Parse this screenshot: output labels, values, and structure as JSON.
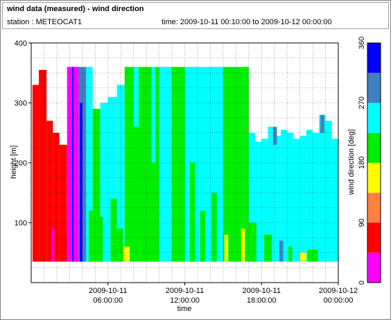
{
  "header": {
    "title": "wind data (measured) - wind direction",
    "station": "station : METEOCAT1",
    "time_range": "time: 2009-10-11 00:10:00 to 2009-10-12 00:00:00"
  },
  "chart_data": {
    "type": "heatmap",
    "title": "wind data (measured) - wind direction",
    "xlabel": "time",
    "ylabel": "height [m]",
    "zlabel": "wind direction [deg]",
    "x_unit": "hours since 2009-10-11 00:00",
    "xlim": [
      0,
      24
    ],
    "ylim": [
      0,
      400
    ],
    "y_ticks": [
      100,
      200,
      300,
      400
    ],
    "x_ticks": [
      {
        "value": 6,
        "line1": "2009-10-11",
        "line2": "06:00:00"
      },
      {
        "value": 12,
        "line1": "2009-10-11",
        "line2": "12:00:00"
      },
      {
        "value": 18,
        "line1": "2009-10-11",
        "line2": "18:00:00"
      },
      {
        "value": 24,
        "line1": "2009-10-12",
        "line2": "00:00:00"
      }
    ],
    "colorbar": {
      "ticks": [
        0,
        90,
        180,
        270,
        360
      ],
      "bins": [
        {
          "from": 0,
          "to": 45,
          "color": "#ff00ff"
        },
        {
          "from": 45,
          "to": 90,
          "color": "#ff0000"
        },
        {
          "from": 90,
          "to": 135,
          "color": "#ff8040"
        },
        {
          "from": 135,
          "to": 180,
          "color": "#ffff00"
        },
        {
          "from": 180,
          "to": 225,
          "color": "#00ee00"
        },
        {
          "from": 225,
          "to": 270,
          "color": "#00ffff"
        },
        {
          "from": 270,
          "to": 315,
          "color": "#4080c0"
        },
        {
          "from": 315,
          "to": 360,
          "color": "#0000ff"
        }
      ]
    },
    "grid": true,
    "data_bottom_height": 35,
    "columns": [
      {
        "t0": 0.1,
        "t1": 0.6,
        "top": 330,
        "dir": 67
      },
      {
        "t0": 0.6,
        "t1": 1.2,
        "top": 355,
        "dir": 67
      },
      {
        "t0": 1.2,
        "t1": 1.7,
        "top": 270,
        "dir": 67
      },
      {
        "t0": 1.7,
        "t1": 2.2,
        "top": 250,
        "dir": 67
      },
      {
        "t0": 2.2,
        "t1": 2.8,
        "top": 230,
        "dir": 67
      },
      {
        "t0": 2.8,
        "t1": 3.2,
        "top": 360,
        "dir": 22
      },
      {
        "t0": 3.2,
        "t1": 3.7,
        "top": 360,
        "dir": 337
      },
      {
        "t0": 3.7,
        "t1": 4.3,
        "top": 360,
        "dir": 292
      },
      {
        "t0": 4.3,
        "t1": 4.8,
        "top": 360,
        "dir": 247
      },
      {
        "t0": 4.8,
        "t1": 5.4,
        "top": 290,
        "dir": 202
      },
      {
        "t0": 5.4,
        "t1": 6.0,
        "top": 300,
        "dir": 247
      },
      {
        "t0": 6.0,
        "t1": 6.7,
        "top": 310,
        "dir": 247
      },
      {
        "t0": 6.7,
        "t1": 7.3,
        "top": 330,
        "dir": 247
      },
      {
        "t0": 7.3,
        "t1": 8.0,
        "top": 360,
        "dir": 202
      },
      {
        "t0": 8.0,
        "t1": 9.0,
        "top": 360,
        "dir": 202
      },
      {
        "t0": 9.0,
        "t1": 10.0,
        "top": 360,
        "dir": 202
      },
      {
        "t0": 10.0,
        "t1": 11.0,
        "top": 360,
        "dir": 247
      },
      {
        "t0": 11.0,
        "t1": 12.0,
        "top": 360,
        "dir": 202
      },
      {
        "t0": 12.0,
        "t1": 13.0,
        "top": 360,
        "dir": 247
      },
      {
        "t0": 13.0,
        "t1": 14.0,
        "top": 360,
        "dir": 247
      },
      {
        "t0": 14.0,
        "t1": 15.0,
        "top": 360,
        "dir": 247
      },
      {
        "t0": 15.0,
        "t1": 16.0,
        "top": 360,
        "dir": 202
      },
      {
        "t0": 16.0,
        "t1": 17.0,
        "top": 360,
        "dir": 202
      },
      {
        "t0": 17.0,
        "t1": 17.5,
        "top": 250,
        "dir": 247
      },
      {
        "t0": 17.5,
        "t1": 18.0,
        "top": 235,
        "dir": 247
      },
      {
        "t0": 18.0,
        "t1": 18.5,
        "top": 240,
        "dir": 247
      },
      {
        "t0": 18.5,
        "t1": 19.0,
        "top": 260,
        "dir": 247
      },
      {
        "t0": 19.0,
        "t1": 19.5,
        "top": 245,
        "dir": 247
      },
      {
        "t0": 19.5,
        "t1": 20.0,
        "top": 255,
        "dir": 247
      },
      {
        "t0": 20.0,
        "t1": 20.5,
        "top": 250,
        "dir": 247
      },
      {
        "t0": 20.5,
        "t1": 21.0,
        "top": 240,
        "dir": 247
      },
      {
        "t0": 21.0,
        "t1": 21.5,
        "top": 245,
        "dir": 247
      },
      {
        "t0": 21.5,
        "t1": 22.0,
        "top": 255,
        "dir": 247
      },
      {
        "t0": 22.0,
        "t1": 22.5,
        "top": 250,
        "dir": 247
      },
      {
        "t0": 22.5,
        "t1": 23.0,
        "top": 280,
        "dir": 247
      },
      {
        "t0": 23.0,
        "t1": 23.5,
        "top": 270,
        "dir": 247
      },
      {
        "t0": 23.5,
        "t1": 24.0,
        "top": 240,
        "dir": 247
      }
    ],
    "patches": [
      {
        "t0": 3.3,
        "t1": 3.7,
        "h0": 35,
        "h1": 360,
        "dir": 22
      },
      {
        "t0": 3.8,
        "t1": 4.0,
        "h0": 35,
        "h1": 300,
        "dir": 337
      },
      {
        "t0": 2.8,
        "t1": 3.0,
        "h0": 35,
        "h1": 80,
        "dir": 22
      },
      {
        "t0": 1.6,
        "t1": 1.8,
        "h0": 35,
        "h1": 90,
        "dir": 22
      },
      {
        "t0": 4.5,
        "t1": 4.8,
        "h0": 35,
        "h1": 120,
        "dir": 202
      },
      {
        "t0": 5.2,
        "t1": 5.6,
        "h0": 35,
        "h1": 110,
        "dir": 202
      },
      {
        "t0": 6.2,
        "t1": 6.7,
        "h0": 35,
        "h1": 140,
        "dir": 202
      },
      {
        "t0": 6.7,
        "t1": 7.2,
        "h0": 35,
        "h1": 90,
        "dir": 202
      },
      {
        "t0": 7.2,
        "t1": 7.7,
        "h0": 35,
        "h1": 60,
        "dir": 157
      },
      {
        "t0": 8.0,
        "t1": 8.4,
        "h0": 260,
        "h1": 360,
        "dir": 247
      },
      {
        "t0": 9.4,
        "t1": 9.7,
        "h0": 200,
        "h1": 360,
        "dir": 247
      },
      {
        "t0": 10.4,
        "t1": 10.8,
        "h0": 100,
        "h1": 360,
        "dir": 247
      },
      {
        "t0": 11.4,
        "t1": 11.7,
        "h0": 35,
        "h1": 250,
        "dir": 202
      },
      {
        "t0": 12.4,
        "t1": 12.8,
        "h0": 35,
        "h1": 200,
        "dir": 202
      },
      {
        "t0": 13.2,
        "t1": 13.6,
        "h0": 35,
        "h1": 120,
        "dir": 202
      },
      {
        "t0": 14.1,
        "t1": 14.5,
        "h0": 35,
        "h1": 150,
        "dir": 202
      },
      {
        "t0": 15.1,
        "t1": 15.4,
        "h0": 35,
        "h1": 80,
        "dir": 157
      },
      {
        "t0": 16.4,
        "t1": 16.7,
        "h0": 35,
        "h1": 90,
        "dir": 157
      },
      {
        "t0": 17.0,
        "t1": 17.6,
        "h0": 35,
        "h1": 100,
        "dir": 202
      },
      {
        "t0": 18.2,
        "t1": 18.8,
        "h0": 35,
        "h1": 80,
        "dir": 202
      },
      {
        "t0": 19.4,
        "t1": 19.7,
        "h0": 35,
        "h1": 70,
        "dir": 292
      },
      {
        "t0": 20.1,
        "t1": 20.4,
        "h0": 35,
        "h1": 60,
        "dir": 202
      },
      {
        "t0": 21.0,
        "t1": 21.5,
        "h0": 35,
        "h1": 50,
        "dir": 157
      },
      {
        "t0": 21.6,
        "t1": 22.4,
        "h0": 35,
        "h1": 55,
        "dir": 202
      },
      {
        "t0": 18.9,
        "t1": 19.2,
        "h0": 230,
        "h1": 260,
        "dir": 292
      },
      {
        "t0": 22.6,
        "t1": 22.9,
        "h0": 250,
        "h1": 280,
        "dir": 292
      }
    ]
  }
}
